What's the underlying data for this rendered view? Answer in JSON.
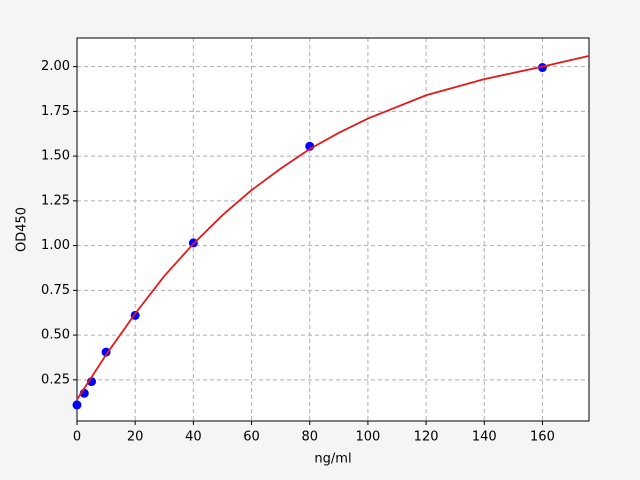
{
  "chart_data": {
    "type": "scatter",
    "x_label": "ng/ml",
    "y_label": "OD450",
    "xlim": [
      0,
      176
    ],
    "ylim": [
      0.02,
      2.16
    ],
    "xticks": [
      0,
      20,
      40,
      60,
      80,
      100,
      120,
      140,
      160
    ],
    "yticks": [
      0.25,
      {
        "value": 0.5,
        "label": "0.50"
      },
      0.75,
      {
        "value": 1,
        "label": "1.00"
      },
      1.25,
      {
        "value": 1.5,
        "label": "1.50"
      },
      1.75,
      {
        "value": 2,
        "label": "2.00"
      }
    ],
    "grid": true,
    "series": [
      {
        "type": "scatter",
        "color": "#0000ff",
        "x": [
          0,
          2.5,
          5,
          10,
          20,
          40,
          80,
          160
        ],
        "values": [
          0.11,
          0.175,
          0.24,
          0.405,
          0.61,
          1.015,
          1.555,
          1.995
        ]
      },
      {
        "type": "line",
        "color": "#e31a1c",
        "x": [
          0,
          10,
          20,
          30,
          40,
          50,
          60,
          70,
          80,
          90,
          100,
          120,
          140,
          160,
          176
        ],
        "values": [
          0.14,
          0.39,
          0.62,
          0.83,
          1.01,
          1.17,
          1.31,
          1.43,
          1.54,
          1.63,
          1.71,
          1.84,
          1.93,
          2.0,
          2.06
        ]
      }
    ]
  }
}
